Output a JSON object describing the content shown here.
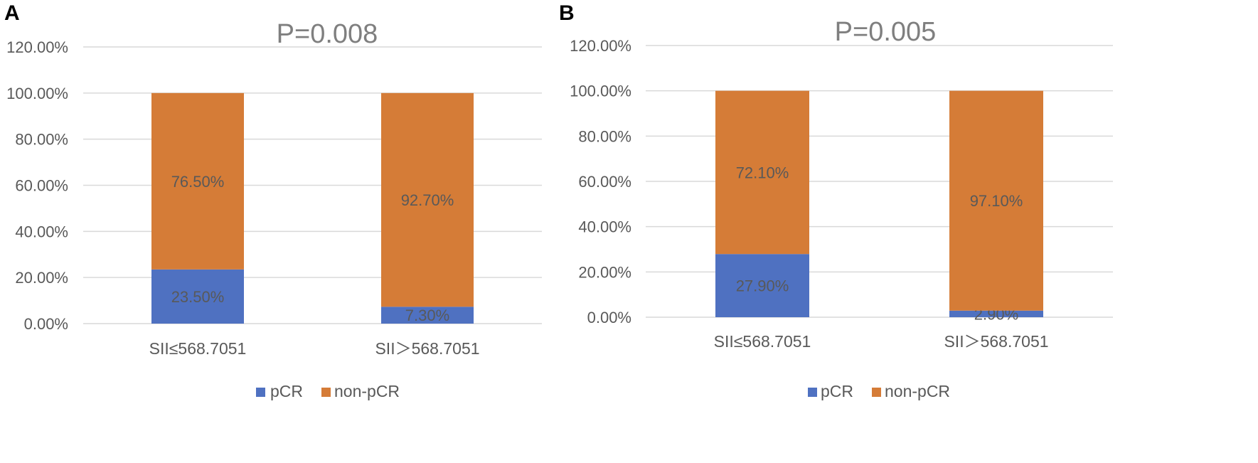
{
  "chart_data": [
    {
      "panel_label": "A",
      "type": "bar",
      "stacked": true,
      "percent_stacked": true,
      "title": "P=0.008",
      "categories": [
        "SII≤568.7051",
        "SII＞568.7051"
      ],
      "series": [
        {
          "name": "pCR",
          "values": [
            23.5,
            7.3
          ],
          "labels": [
            "23.50%",
            "7.30%"
          ],
          "color": "#4F71C1"
        },
        {
          "name": "non-pCR",
          "values": [
            76.5,
            92.7
          ],
          "labels": [
            "76.50%",
            "92.70%"
          ],
          "color": "#D57C37"
        }
      ],
      "ylim": [
        0,
        120
      ],
      "yticks": [
        {
          "value": 0,
          "label": "0.00%"
        },
        {
          "value": 20,
          "label": "20.00%"
        },
        {
          "value": 40,
          "label": "40.00%"
        },
        {
          "value": 60,
          "label": "60.00%"
        },
        {
          "value": 80,
          "label": "80.00%"
        },
        {
          "value": 100,
          "label": "100.00%"
        },
        {
          "value": 120,
          "label": "120.00%"
        }
      ],
      "xlabel": "",
      "ylabel": "",
      "grid": true,
      "legend": "bottom"
    },
    {
      "panel_label": "B",
      "type": "bar",
      "stacked": true,
      "percent_stacked": true,
      "title": "P=0.005",
      "categories": [
        "SII≤568.7051",
        "SII＞568.7051"
      ],
      "series": [
        {
          "name": "pCR",
          "values": [
            27.9,
            2.9
          ],
          "labels": [
            "27.90%",
            "2.90%"
          ],
          "color": "#4F71C1"
        },
        {
          "name": "non-pCR",
          "values": [
            72.1,
            97.1
          ],
          "labels": [
            "72.10%",
            "97.10%"
          ],
          "color": "#D57C37"
        }
      ],
      "ylim": [
        0,
        120
      ],
      "yticks": [
        {
          "value": 0,
          "label": "0.00%"
        },
        {
          "value": 20,
          "label": "20.00%"
        },
        {
          "value": 40,
          "label": "40.00%"
        },
        {
          "value": 60,
          "label": "60.00%"
        },
        {
          "value": 80,
          "label": "80.00%"
        },
        {
          "value": 100,
          "label": "100.00%"
        },
        {
          "value": 120,
          "label": "120.00%"
        }
      ],
      "xlabel": "",
      "ylabel": "",
      "grid": true,
      "legend": "bottom"
    }
  ],
  "colors": {
    "grid": "#D9D9D9",
    "text": "#595959",
    "title": "#7F7F7F",
    "panel_label": "#000000",
    "bar_label": "#595959"
  }
}
